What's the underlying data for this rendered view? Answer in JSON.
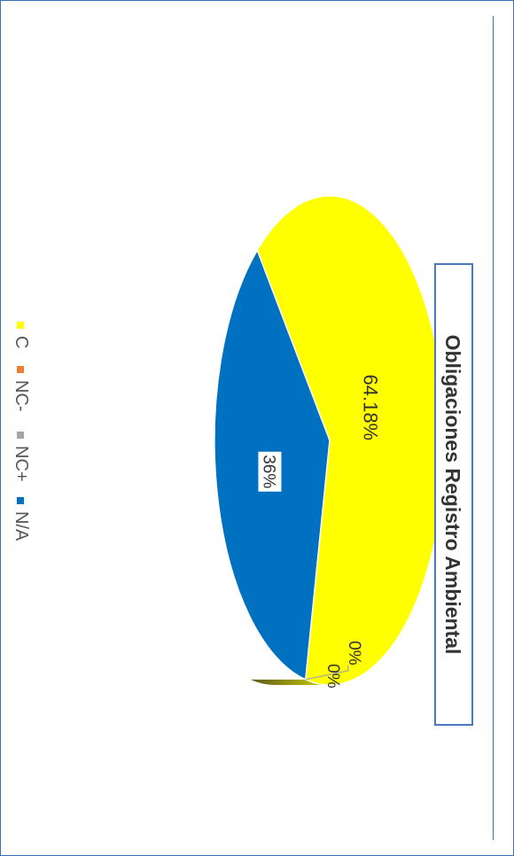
{
  "chart_data": {
    "type": "pie",
    "title": "Obligaciones Registro Ambiental",
    "slices": [
      {
        "label": "C",
        "value": 64.18,
        "display": "64.18%",
        "color": "#ffff00"
      },
      {
        "label": "NC-",
        "value": 0,
        "display": "0%",
        "color": "#ed7d31"
      },
      {
        "label": "NC+",
        "value": 0,
        "display": "0%",
        "color": "#a5a5a5"
      },
      {
        "label": "N/A",
        "value": 35.82,
        "display": "36%",
        "color": "#0070c0"
      }
    ],
    "legend": {
      "placement": "left",
      "entries": [
        "C",
        "NC-",
        "NC+",
        "N/A"
      ]
    },
    "three_d": true,
    "orientation": "rotated 90° clockwise"
  }
}
